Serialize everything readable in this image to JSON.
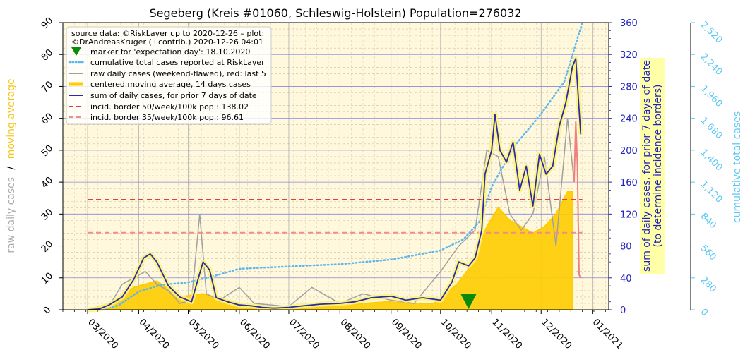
{
  "chart_data": {
    "type": "line",
    "title": "Segeberg (Kreis #01060, Schleswig-Holstein) Population=276032",
    "xlabel": "",
    "ylabel_left_a": "raw daily cases",
    "ylabel_left_sep": "/",
    "ylabel_left_b": "moving average",
    "ylabel_right1": "sum of daily cases, for prior 7 days of date",
    "ylabel_right1_b": "(to determine incidence borders)",
    "ylabel_right2": "cumulative total cases",
    "x_ticks": [
      "03/2020",
      "04/2020",
      "05/2020",
      "06/2020",
      "07/2020",
      "08/2020",
      "09/2020",
      "10/2020",
      "11/2020",
      "12/2020",
      "01/2021"
    ],
    "y_left_ticks": [
      "0",
      "10",
      "20",
      "30",
      "40",
      "50",
      "60",
      "70",
      "80",
      "90"
    ],
    "y_right1_ticks": [
      "0",
      "40",
      "80",
      "120",
      "160",
      "200",
      "240",
      "280",
      "320",
      "360"
    ],
    "y_right2_ticks": [
      "0",
      "280",
      "560",
      "840",
      "1,120",
      "1,400",
      "1,680",
      "1,960",
      "2,240",
      "2,520"
    ],
    "ylim_left": [
      0,
      90
    ],
    "ylim_right1": [
      0,
      360
    ],
    "ylim_right2": [
      0,
      2520
    ],
    "grid": true,
    "legend_placement": "top-left",
    "legend": {
      "source_line1": "source data: ©RiskLayer up to 2020-12-26 – plot:",
      "source_line2": "©DrAndreasKruger (+contrib.) 2020-12-26 04:01",
      "marker": "marker for 'expectation day': 18.10.2020",
      "cumulative": "cumulative total cases reported at RiskLayer",
      "raw": "raw daily cases (weekend-flawed), red: last 5",
      "moving_avg": "centered moving average, 14 days cases",
      "sum7": "sum of daily cases, for prior 7 days of date",
      "border50": "incid. border 50/week/100k pop.: 138.02",
      "border35": "incid. border 35/week/100k pop.: 96.61"
    },
    "incidence_border_50": 138.02,
    "incidence_border_35": 96.61,
    "expectation_day": "2020-10-18",
    "series": [
      {
        "name": "sum of daily cases, for prior 7 days of date",
        "axis": "right1",
        "points": [
          [
            "2020-03-01",
            0
          ],
          [
            "2020-03-08",
            1
          ],
          [
            "2020-03-14",
            6
          ],
          [
            "2020-03-22",
            16
          ],
          [
            "2020-03-29",
            38
          ],
          [
            "2020-04-04",
            65
          ],
          [
            "2020-04-08",
            70
          ],
          [
            "2020-04-12",
            60
          ],
          [
            "2020-04-19",
            30
          ],
          [
            "2020-04-26",
            16
          ],
          [
            "2020-05-03",
            10
          ],
          [
            "2020-05-10",
            60
          ],
          [
            "2020-05-14",
            50
          ],
          [
            "2020-05-18",
            15
          ],
          [
            "2020-05-25",
            10
          ],
          [
            "2020-06-01",
            6
          ],
          [
            "2020-06-08",
            5
          ],
          [
            "2020-06-15",
            3
          ],
          [
            "2020-06-22",
            2
          ],
          [
            "2020-07-01",
            3
          ],
          [
            "2020-07-10",
            5
          ],
          [
            "2020-07-20",
            7
          ],
          [
            "2020-08-01",
            8
          ],
          [
            "2020-08-10",
            10
          ],
          [
            "2020-08-20",
            15
          ],
          [
            "2020-09-01",
            17
          ],
          [
            "2020-09-10",
            12
          ],
          [
            "2020-09-20",
            15
          ],
          [
            "2020-10-01",
            12
          ],
          [
            "2020-10-08",
            35
          ],
          [
            "2020-10-12",
            60
          ],
          [
            "2020-10-18",
            55
          ],
          [
            "2020-10-22",
            65
          ],
          [
            "2020-10-26",
            100
          ],
          [
            "2020-10-28",
            170
          ],
          [
            "2020-11-01",
            200
          ],
          [
            "2020-11-03",
            245
          ],
          [
            "2020-11-06",
            200
          ],
          [
            "2020-11-10",
            185
          ],
          [
            "2020-11-14",
            210
          ],
          [
            "2020-11-18",
            150
          ],
          [
            "2020-11-22",
            180
          ],
          [
            "2020-11-26",
            130
          ],
          [
            "2020-11-30",
            195
          ],
          [
            "2020-12-04",
            170
          ],
          [
            "2020-12-08",
            180
          ],
          [
            "2020-12-12",
            230
          ],
          [
            "2020-12-16",
            260
          ],
          [
            "2020-12-20",
            305
          ],
          [
            "2020-12-22",
            315
          ],
          [
            "2020-12-25",
            220
          ]
        ]
      },
      {
        "name": "centered moving average, 14 days cases",
        "axis": "left",
        "points": [
          [
            "2020-03-01",
            0
          ],
          [
            "2020-03-15",
            2
          ],
          [
            "2020-03-29",
            7
          ],
          [
            "2020-04-12",
            9
          ],
          [
            "2020-04-26",
            4
          ],
          [
            "2020-05-10",
            5
          ],
          [
            "2020-05-24",
            3
          ],
          [
            "2020-06-07",
            1
          ],
          [
            "2020-06-21",
            0.5
          ],
          [
            "2020-07-05",
            0.5
          ],
          [
            "2020-07-19",
            1
          ],
          [
            "2020-08-02",
            1.5
          ],
          [
            "2020-08-16",
            2
          ],
          [
            "2020-08-30",
            2.5
          ],
          [
            "2020-09-13",
            2
          ],
          [
            "2020-09-27",
            2
          ],
          [
            "2020-10-11",
            8
          ],
          [
            "2020-10-20",
            14
          ],
          [
            "2020-10-29",
            26
          ],
          [
            "2020-11-05",
            32
          ],
          [
            "2020-11-12",
            28
          ],
          [
            "2020-11-19",
            26
          ],
          [
            "2020-11-26",
            24
          ],
          [
            "2020-12-03",
            26
          ],
          [
            "2020-12-10",
            30
          ],
          [
            "2020-12-17",
            37
          ],
          [
            "2020-12-20",
            37
          ]
        ]
      },
      {
        "name": "cumulative total cases reported at RiskLayer",
        "axis": "right2",
        "points": [
          [
            "2020-03-10",
            0
          ],
          [
            "2020-03-20",
            40
          ],
          [
            "2020-04-01",
            160
          ],
          [
            "2020-04-15",
            220
          ],
          [
            "2020-05-01",
            240
          ],
          [
            "2020-05-15",
            290
          ],
          [
            "2020-06-01",
            360
          ],
          [
            "2020-07-01",
            380
          ],
          [
            "2020-08-01",
            400
          ],
          [
            "2020-09-01",
            440
          ],
          [
            "2020-10-01",
            520
          ],
          [
            "2020-10-15",
            620
          ],
          [
            "2020-10-25",
            780
          ],
          [
            "2020-11-01",
            1080
          ],
          [
            "2020-11-15",
            1440
          ],
          [
            "2020-12-01",
            1720
          ],
          [
            "2020-12-15",
            2000
          ],
          [
            "2020-12-26",
            2520
          ]
        ]
      },
      {
        "name": "raw daily cases (weekend-flawed), red: last 5",
        "axis": "left",
        "points": [
          [
            "2020-03-15",
            2
          ],
          [
            "2020-03-22",
            8
          ],
          [
            "2020-03-29",
            10
          ],
          [
            "2020-04-05",
            12
          ],
          [
            "2020-04-12",
            8
          ],
          [
            "2020-04-19",
            6
          ],
          [
            "2020-04-26",
            2
          ],
          [
            "2020-05-03",
            3
          ],
          [
            "2020-05-08",
            30
          ],
          [
            "2020-05-12",
            5
          ],
          [
            "2020-05-20",
            3
          ],
          [
            "2020-06-01",
            7
          ],
          [
            "2020-06-10",
            2
          ],
          [
            "2020-07-01",
            1
          ],
          [
            "2020-07-15",
            7
          ],
          [
            "2020-08-01",
            2
          ],
          [
            "2020-08-15",
            5
          ],
          [
            "2020-09-01",
            3
          ],
          [
            "2020-09-15",
            2
          ],
          [
            "2020-10-01",
            12
          ],
          [
            "2020-10-12",
            20
          ],
          [
            "2020-10-22",
            25
          ],
          [
            "2020-10-29",
            50
          ],
          [
            "2020-11-05",
            48
          ],
          [
            "2020-11-12",
            30
          ],
          [
            "2020-11-19",
            25
          ],
          [
            "2020-11-26",
            30
          ],
          [
            "2020-12-03",
            48
          ],
          [
            "2020-12-10",
            20
          ],
          [
            "2020-12-17",
            60
          ],
          [
            "2020-12-21",
            40
          ]
        ]
      },
      {
        "name": "raw daily cases, red: last 5",
        "axis": "left",
        "points": [
          [
            "2020-12-21",
            40
          ],
          [
            "2020-12-22",
            59
          ],
          [
            "2020-12-23",
            45
          ],
          [
            "2020-12-24",
            11
          ],
          [
            "2020-12-25",
            10
          ]
        ]
      }
    ],
    "colors": {
      "sum7": "#2b2baa",
      "sum7_halo": "#fdf37a",
      "moving_avg": "#ffcc00",
      "cumulative": "#5bb7f0",
      "raw": "#a0a0a0",
      "raw_last": "#f08080",
      "border50": "#e83c3c",
      "border35": "#f08c8c",
      "marker": "#0a8a0a",
      "plot_bg": "#fff8dc",
      "left_label_yellow": "#f5c518",
      "right1_color": "#2222bb",
      "right2_color": "#5bc8f5"
    }
  }
}
